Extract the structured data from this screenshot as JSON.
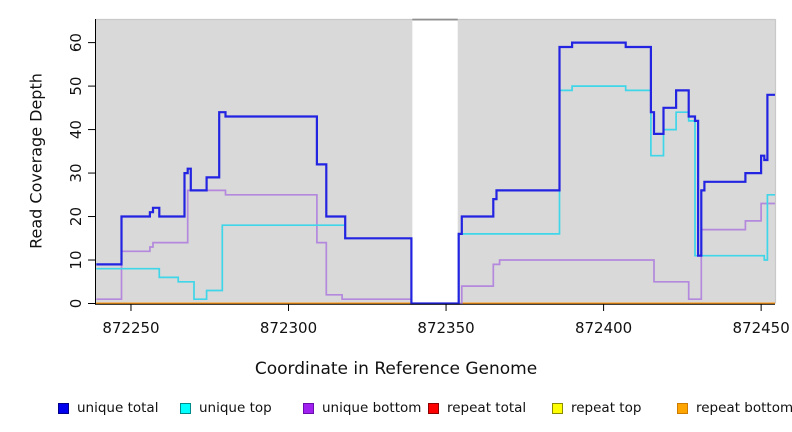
{
  "chart_data": {
    "type": "line",
    "subtype": "step",
    "title": "",
    "xlabel": "Coordinate in Reference Genome",
    "ylabel": "Read Coverage Depth",
    "xlim": [
      872238.9,
      872454.4
    ],
    "ylim": [
      0,
      65.2
    ],
    "x_ticks": [
      872250,
      872300,
      872350,
      872400,
      872450
    ],
    "y_ticks": [
      0,
      10,
      20,
      30,
      40,
      50,
      60
    ],
    "grid": false,
    "panel_background": "#d9d9d9",
    "panel_border_color": "#c9c9c9",
    "masked_region": {
      "from": 872339.3,
      "to": 872353.7,
      "color": "#ffffff",
      "top_edge_color": "#8f8f8f"
    },
    "series": [
      {
        "name": "repeat total",
        "color": "#cc2222",
        "line_width": 1.5,
        "points": [
          [
            872239,
            0
          ]
        ]
      },
      {
        "name": "repeat top",
        "color": "#ffff00",
        "line_width": 1.5,
        "points": [
          [
            872239,
            0
          ]
        ]
      },
      {
        "name": "repeat bottom",
        "color": "#ff9914",
        "line_width": 2,
        "points": [
          [
            872239,
            0
          ]
        ]
      },
      {
        "name": "unique bottom",
        "color": "#b388dd",
        "line_width": 1.7,
        "points": [
          [
            872239,
            1
          ],
          [
            872247,
            12
          ],
          [
            872256,
            13
          ],
          [
            872257,
            14
          ],
          [
            872268,
            26
          ],
          [
            872280,
            25
          ],
          [
            872309,
            14
          ],
          [
            872312,
            2
          ],
          [
            872317,
            1
          ],
          [
            872339,
            0
          ],
          [
            872355,
            4
          ],
          [
            872365,
            9
          ],
          [
            872367,
            10
          ],
          [
            872416,
            5
          ],
          [
            872427,
            1
          ],
          [
            872431,
            17
          ],
          [
            872445,
            19
          ],
          [
            872450,
            23
          ]
        ]
      },
      {
        "name": "unique top",
        "color": "#3ed6e8",
        "line_width": 1.7,
        "points": [
          [
            872239,
            8
          ],
          [
            872259,
            6
          ],
          [
            872265,
            5
          ],
          [
            872270,
            1
          ],
          [
            872274,
            3
          ],
          [
            872279,
            18
          ],
          [
            872318,
            15
          ],
          [
            872339,
            0
          ],
          [
            872354,
            16
          ],
          [
            872386,
            49
          ],
          [
            872390,
            50
          ],
          [
            872407,
            49
          ],
          [
            872415,
            34
          ],
          [
            872419,
            40
          ],
          [
            872423,
            44
          ],
          [
            872427,
            42
          ],
          [
            872429,
            11
          ],
          [
            872451,
            10
          ],
          [
            872452,
            25
          ]
        ]
      },
      {
        "name": "unique total",
        "color": "#2323e2",
        "line_width": 2.2,
        "points": [
          [
            872239,
            9
          ],
          [
            872247,
            20
          ],
          [
            872256,
            21
          ],
          [
            872257,
            22
          ],
          [
            872259,
            20
          ],
          [
            872267,
            30
          ],
          [
            872268,
            31
          ],
          [
            872269,
            26
          ],
          [
            872274,
            29
          ],
          [
            872278,
            44
          ],
          [
            872280,
            43
          ],
          [
            872309,
            32
          ],
          [
            872312,
            20
          ],
          [
            872318,
            15
          ],
          [
            872339,
            0
          ],
          [
            872354,
            16
          ],
          [
            872355,
            20
          ],
          [
            872365,
            24
          ],
          [
            872366,
            26
          ],
          [
            872386,
            59
          ],
          [
            872390,
            60
          ],
          [
            872407,
            59
          ],
          [
            872415,
            44
          ],
          [
            872416,
            39
          ],
          [
            872419,
            45
          ],
          [
            872423,
            49
          ],
          [
            872427,
            43
          ],
          [
            872429,
            42
          ],
          [
            872430,
            11
          ],
          [
            872431,
            26
          ],
          [
            872432,
            28
          ],
          [
            872445,
            30
          ],
          [
            872450,
            34
          ],
          [
            872451,
            33
          ],
          [
            872452,
            48
          ]
        ]
      }
    ],
    "legend": {
      "position": "bottom",
      "items": [
        {
          "label": "unique total",
          "fill": "#0000ee",
          "border": "#00008b"
        },
        {
          "label": "unique top",
          "fill": "#00ffff",
          "border": "#008b8b"
        },
        {
          "label": "unique bottom",
          "fill": "#a020f0",
          "border": "#6a0dad"
        },
        {
          "label": "repeat total",
          "fill": "#ff0000",
          "border": "#8b0000"
        },
        {
          "label": "repeat top",
          "fill": "#ffff00",
          "border": "#8b8b00"
        },
        {
          "label": "repeat bottom",
          "fill": "#ffa500",
          "border": "#cc7a00"
        }
      ]
    }
  }
}
